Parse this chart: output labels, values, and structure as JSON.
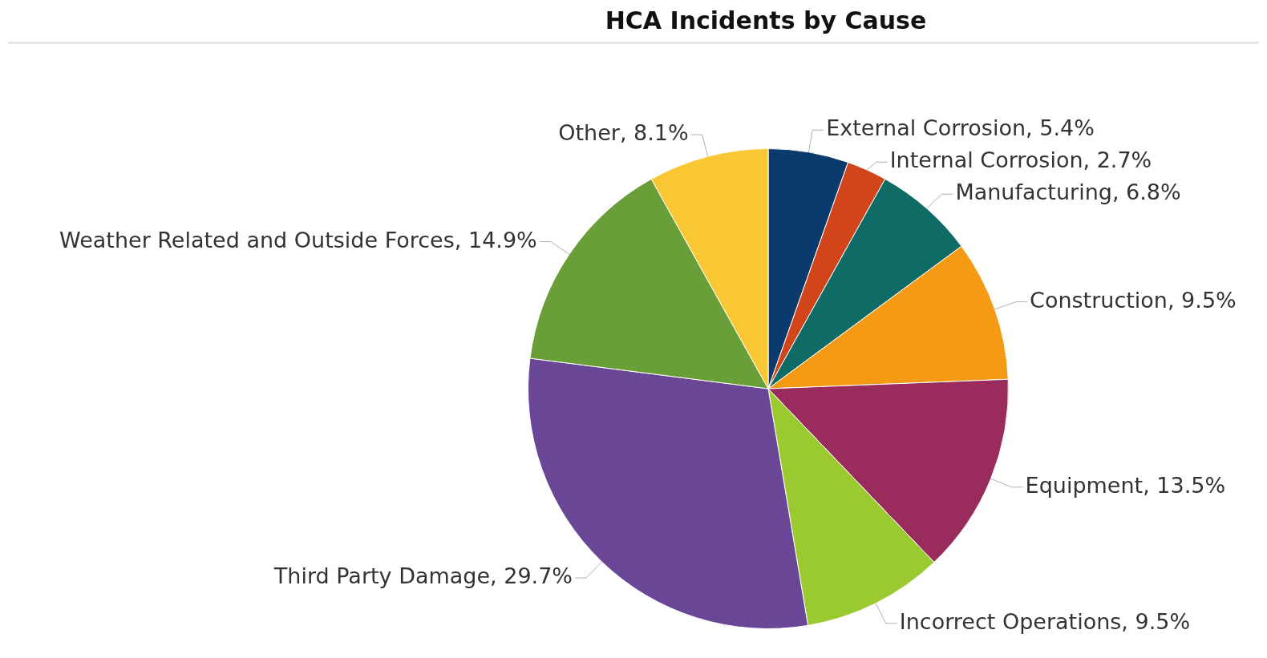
{
  "chart_data": {
    "type": "pie",
    "title": "HCA Incidents by Cause",
    "categories": [
      "External Corrosion",
      "Internal Corrosion",
      "Manufacturing",
      "Construction",
      "Equipment",
      "Incorrect Operations",
      "Third Party Damage",
      "Weather Related and Outside Forces",
      "Other"
    ],
    "values": [
      5.4,
      2.7,
      6.8,
      9.5,
      13.5,
      9.5,
      29.7,
      14.9,
      8.1
    ],
    "value_labels": [
      "5.4%",
      "2.7%",
      "6.8%",
      "9.5%",
      "13.5%",
      "9.5%",
      "29.7%",
      "14.9%",
      "8.1%"
    ],
    "colors": [
      "#0b3a6c",
      "#d2451a",
      "#0e6b66",
      "#f59a15",
      "#9a2b5d",
      "#9ac930",
      "#6a4696",
      "#6a9e38",
      "#f8c733"
    ],
    "legend": false
  }
}
